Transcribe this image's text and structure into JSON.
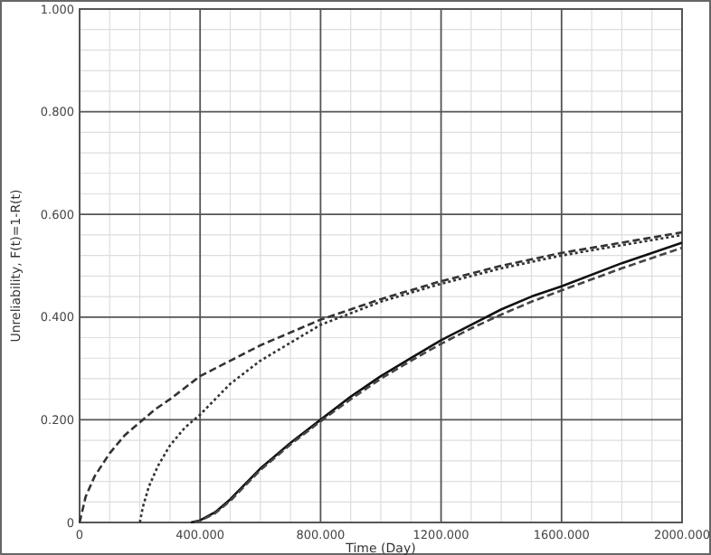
{
  "chart_data": {
    "type": "line",
    "xlabel": "Time (Day)",
    "ylabel": "Unreliability, F(t)=1-R(t)",
    "xlim": [
      0,
      2000
    ],
    "ylim": [
      0,
      1
    ],
    "xticks": [
      0,
      {
        "value": 400,
        "label": "400.000"
      },
      {
        "value": 800,
        "label": "800.000"
      },
      {
        "value": 1200,
        "label": "1200.000"
      },
      {
        "value": 1600,
        "label": "1600.000"
      },
      {
        "value": 2000,
        "label": "2000.000"
      }
    ],
    "yticks": [
      0,
      {
        "value": 0.2,
        "label": "0.200"
      },
      {
        "value": 0.4,
        "label": "0.400"
      },
      {
        "value": 0.6,
        "label": "0.600"
      },
      {
        "value": 0.8,
        "label": "0.800"
      },
      {
        "value": 1,
        "label": "1.000"
      }
    ],
    "grid": true,
    "marker": "none",
    "series": [
      {
        "color": "#333333",
        "line_style": "dashed",
        "x": [
          0,
          20,
          50,
          100,
          150,
          200,
          250,
          300,
          400,
          500,
          600,
          800,
          1000,
          1200,
          1400,
          1600,
          1800,
          2000
        ],
        "values": [
          0,
          0.05,
          0.09,
          0.135,
          0.17,
          0.195,
          0.22,
          0.24,
          0.285,
          0.315,
          0.345,
          0.395,
          0.435,
          0.47,
          0.5,
          0.525,
          0.545,
          0.565
        ]
      },
      {
        "color": "#333333",
        "line_style": "dotted",
        "x": [
          200,
          210,
          230,
          260,
          300,
          350,
          400,
          500,
          600,
          800,
          1000,
          1200,
          1400,
          1600,
          1800,
          2000
        ],
        "values": [
          0,
          0.03,
          0.07,
          0.11,
          0.15,
          0.185,
          0.21,
          0.27,
          0.315,
          0.385,
          0.43,
          0.465,
          0.495,
          0.52,
          0.54,
          0.56
        ]
      },
      {
        "color": "#111111",
        "line_style": "solid",
        "x": [
          370,
          400,
          450,
          500,
          550,
          600,
          700,
          800,
          900,
          1000,
          1100,
          1200,
          1300,
          1400,
          1500,
          1600,
          1800,
          2000
        ],
        "values": [
          0,
          0.004,
          0.02,
          0.045,
          0.075,
          0.105,
          0.155,
          0.2,
          0.245,
          0.285,
          0.32,
          0.355,
          0.385,
          0.415,
          0.44,
          0.46,
          0.505,
          0.545
        ]
      },
      {
        "color": "#444444",
        "line_style": "dashed",
        "x": [
          380,
          400,
          450,
          500,
          550,
          600,
          700,
          800,
          900,
          1000,
          1100,
          1200,
          1300,
          1400,
          1500,
          1600,
          1800,
          2000
        ],
        "values": [
          0,
          0.003,
          0.018,
          0.042,
          0.072,
          0.102,
          0.152,
          0.197,
          0.24,
          0.28,
          0.315,
          0.348,
          0.378,
          0.405,
          0.43,
          0.452,
          0.495,
          0.535
        ]
      }
    ]
  }
}
